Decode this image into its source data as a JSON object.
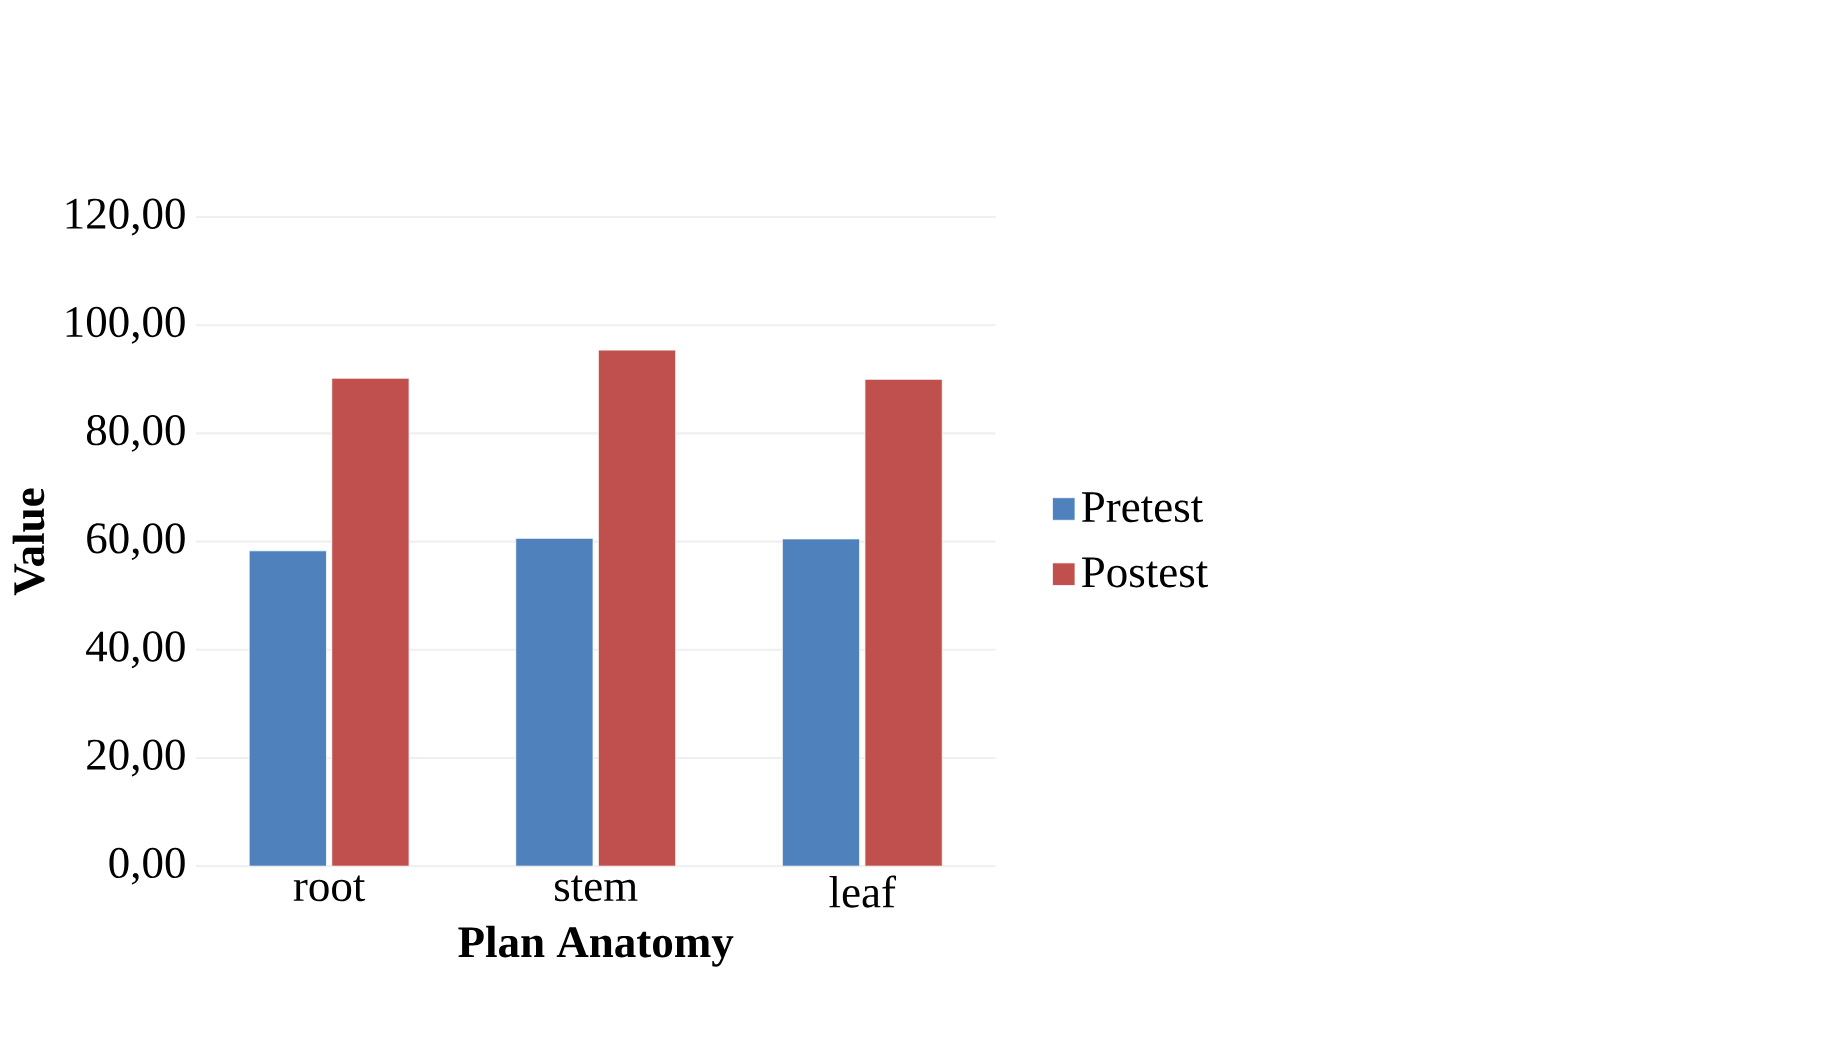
{
  "chart_data": {
    "type": "bar",
    "xlabel": "Plan Anatomy",
    "ylabel": "Value",
    "categories": [
      "root",
      "stem",
      "leaf"
    ],
    "series": [
      {
        "name": "Pretest",
        "color": "#4f81bd",
        "values": [
          58.3,
          60.6,
          60.5
        ]
      },
      {
        "name": "Postest",
        "color": "#c0504d",
        "values": [
          90.2,
          95.4,
          90.0
        ]
      }
    ],
    "ylim": [
      0,
      120
    ],
    "yticks": [
      {
        "value": 0,
        "label": "0,00"
      },
      {
        "value": 20,
        "label": "20,00"
      },
      {
        "value": 40,
        "label": "40,00"
      },
      {
        "value": 60,
        "label": "60,00"
      },
      {
        "value": 80,
        "label": "80,00"
      },
      {
        "value": 100,
        "label": "100,00"
      },
      {
        "value": 120,
        "label": "120,00"
      }
    ],
    "grid": "y",
    "legend": "right"
  }
}
